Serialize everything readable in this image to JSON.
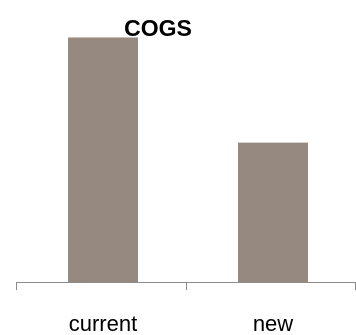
{
  "chart_data": {
    "type": "bar",
    "title": "COGS",
    "xlabel": "",
    "ylabel": "",
    "categories": [
      "current",
      "new"
    ],
    "values": [
      100,
      57
    ],
    "ylim": [
      0,
      110
    ],
    "grid": false,
    "legend": "none",
    "y_axis_visible": false,
    "colors": {
      "bar": "#968a80",
      "axis": "#8c8c8c"
    }
  }
}
